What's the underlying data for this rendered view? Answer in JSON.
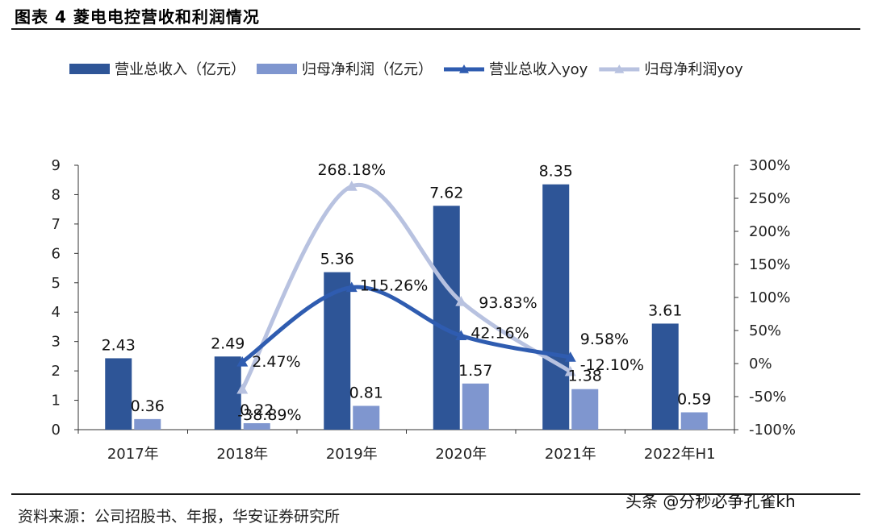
{
  "header": {
    "title": "图表 4   菱电电控营收和利润情况"
  },
  "footer": {
    "source": "资料来源：公司招股书、年报，华安证券研究所",
    "watermark": "头条 @分秒必争孔雀kh"
  },
  "colors": {
    "revenue_bar": "#2e5597",
    "profit_bar": "#7f96cf",
    "revenue_line": "#2f5cb0",
    "profit_line": "#b8c2e0",
    "axis": "#333333"
  },
  "chart_data": {
    "type": "bar",
    "categories": [
      "2017年",
      "2018年",
      "2019年",
      "2020年",
      "2021年",
      "2022年H1"
    ],
    "ylim": [
      0,
      9
    ],
    "y_ticks": [
      "0",
      "1",
      "2",
      "3",
      "4",
      "5",
      "6",
      "7",
      "8",
      "9"
    ],
    "y2lim": [
      -100,
      300
    ],
    "y2_ticks": [
      "-100%",
      "-50%",
      "0%",
      "50%",
      "100%",
      "150%",
      "200%",
      "250%",
      "300%"
    ],
    "grid": false,
    "legend_position": "top",
    "series": [
      {
        "name": "营业总收入（亿元）",
        "kind": "bar",
        "axis": "left",
        "values": [
          2.43,
          2.49,
          5.36,
          7.62,
          8.35,
          3.61
        ],
        "labels": [
          "2.43",
          "2.49",
          "5.36",
          "7.62",
          "8.35",
          "3.61"
        ]
      },
      {
        "name": "归母净利润（亿元）",
        "kind": "bar",
        "axis": "left",
        "values": [
          0.36,
          0.22,
          0.81,
          1.57,
          1.38,
          0.59
        ],
        "labels": [
          "0.36",
          "0.22",
          "0.81",
          "1.57",
          "1.38",
          "0.59"
        ]
      },
      {
        "name": "营业总收入yoy",
        "kind": "line",
        "axis": "right",
        "x": [
          "2018年",
          "2019年",
          "2020年",
          "2021年"
        ],
        "values": [
          2.47,
          115.26,
          42.16,
          9.58
        ],
        "labels": [
          "2.47%",
          "115.26%",
          "42.16%",
          "9.58%"
        ]
      },
      {
        "name": "归母净利润yoy",
        "kind": "line",
        "axis": "right",
        "x": [
          "2018年",
          "2019年",
          "2020年",
          "2021年"
        ],
        "values": [
          -38.89,
          268.18,
          93.83,
          -12.1
        ],
        "labels": [
          "-38.89%",
          "268.18%",
          "93.83%",
          "-12.10%"
        ]
      }
    ]
  }
}
